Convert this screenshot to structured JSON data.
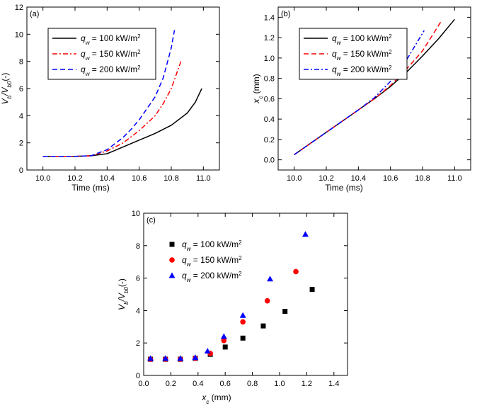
{
  "chart_data": [
    {
      "panel_label": "(a)",
      "type": "line",
      "xlabel": "Time (ms)",
      "ylabel": {
        "base": "V",
        "sub": "b",
        "mid": "/V",
        "sub2": "b0",
        "tail": "(-)"
      },
      "xlim": [
        9.9,
        11.1
      ],
      "ylim": [
        0,
        12
      ],
      "xticks": [
        "10.0",
        "10.2",
        "10.4",
        "10.6",
        "10.8",
        "11.0"
      ],
      "xtick_values": [
        10.0,
        10.2,
        10.4,
        10.6,
        10.8,
        11.0
      ],
      "yticks": [
        "0",
        "2",
        "4",
        "6",
        "8",
        "10",
        "12"
      ],
      "ytick_values": [
        0,
        2,
        4,
        6,
        8,
        10,
        12
      ],
      "legend_position": "top-left",
      "series": [
        {
          "label": {
            "sym": "q",
            "sub": "w",
            "text": " = 100 kW/m",
            "sup": "2"
          },
          "color": "#000000",
          "dash": "solid",
          "x": [
            10.0,
            10.1,
            10.2,
            10.3,
            10.4,
            10.45,
            10.5,
            10.6,
            10.7,
            10.8,
            10.9,
            10.95,
            10.99
          ],
          "y": [
            1.0,
            1.0,
            1.0,
            1.05,
            1.2,
            1.45,
            1.7,
            2.2,
            2.7,
            3.3,
            4.2,
            5.0,
            6.0
          ]
        },
        {
          "label": {
            "sym": "q",
            "sub": "w",
            "text": " = 150 kW/m",
            "sup": "2"
          },
          "color": "#ff0000",
          "dash": "dashdot",
          "x": [
            10.0,
            10.1,
            10.2,
            10.3,
            10.4,
            10.45,
            10.5,
            10.6,
            10.7,
            10.75,
            10.8,
            10.86
          ],
          "y": [
            1.0,
            1.0,
            1.0,
            1.05,
            1.4,
            1.7,
            2.0,
            2.9,
            4.0,
            4.9,
            6.0,
            8.0
          ]
        },
        {
          "label": {
            "sym": "q",
            "sub": "w",
            "text": " = 200 kW/m",
            "sup": "2"
          },
          "color": "#0000ff",
          "dash": "dashed",
          "x": [
            10.0,
            10.1,
            10.2,
            10.3,
            10.4,
            10.45,
            10.5,
            10.55,
            10.6,
            10.7,
            10.75,
            10.8,
            10.82
          ],
          "y": [
            1.0,
            1.0,
            1.0,
            1.05,
            1.5,
            1.95,
            2.4,
            3.0,
            3.7,
            5.4,
            6.8,
            9.0,
            10.3
          ]
        }
      ]
    },
    {
      "panel_label": "(b)",
      "type": "line",
      "xlabel": "Time (ms)",
      "ylabel": {
        "base": "x",
        "sub": "c",
        "tail": " (mm)"
      },
      "xlim": [
        9.9,
        11.1
      ],
      "ylim": [
        -0.1,
        1.5
      ],
      "xticks": [
        "10.0",
        "10.2",
        "10.4",
        "10.6",
        "10.8",
        "11.0"
      ],
      "xtick_values": [
        10.0,
        10.2,
        10.4,
        10.6,
        10.8,
        11.0
      ],
      "yticks": [
        "0.0",
        "0.2",
        "0.4",
        "0.6",
        "0.8",
        "1.0",
        "1.2",
        "1.4"
      ],
      "ytick_values": [
        0.0,
        0.2,
        0.4,
        0.6,
        0.8,
        1.0,
        1.2,
        1.4
      ],
      "legend_position": "top-left",
      "series": [
        {
          "label": {
            "sym": "q",
            "sub": "w",
            "text": " = 100 kW/m",
            "sup": "2"
          },
          "color": "#000000",
          "dash": "solid",
          "x": [
            10.0,
            10.1,
            10.2,
            10.3,
            10.4,
            10.5,
            10.6,
            10.7,
            10.8,
            10.9,
            11.0
          ],
          "y": [
            0.05,
            0.16,
            0.27,
            0.38,
            0.49,
            0.6,
            0.72,
            0.86,
            1.02,
            1.19,
            1.38
          ]
        },
        {
          "label": {
            "sym": "q",
            "sub": "w",
            "text": " = 150 kW/m",
            "sup": "2"
          },
          "color": "#ff0000",
          "dash": "dashed",
          "x": [
            10.0,
            10.1,
            10.2,
            10.3,
            10.4,
            10.5,
            10.6,
            10.7,
            10.8,
            10.92
          ],
          "y": [
            0.05,
            0.16,
            0.27,
            0.38,
            0.49,
            0.6,
            0.73,
            0.89,
            1.07,
            1.37
          ]
        },
        {
          "label": {
            "sym": "q",
            "sub": "w",
            "text": " = 200 kW/m",
            "sup": "2"
          },
          "color": "#0000ff",
          "dash": "dashdot",
          "x": [
            10.0,
            10.1,
            10.2,
            10.3,
            10.4,
            10.5,
            10.6,
            10.7,
            10.81
          ],
          "y": [
            0.05,
            0.16,
            0.27,
            0.38,
            0.49,
            0.61,
            0.77,
            0.98,
            1.27
          ]
        }
      ]
    },
    {
      "panel_label": "(c)",
      "type": "scatter",
      "xlabel": {
        "base": "x",
        "sub": "c",
        "tail": " (mm)"
      },
      "ylabel": {
        "base": "V",
        "sub": "b",
        "mid": "/V",
        "sub2": "b0",
        "tail": "(-)"
      },
      "xlim": [
        0.0,
        1.5
      ],
      "ylim": [
        0,
        10
      ],
      "xticks": [
        "0.0",
        "0.2",
        "0.4",
        "0.6",
        "0.8",
        "1.0",
        "1.2",
        "1.4"
      ],
      "xtick_values": [
        0.0,
        0.2,
        0.4,
        0.6,
        0.8,
        1.0,
        1.2,
        1.4
      ],
      "yticks": [
        "0",
        "2",
        "4",
        "6",
        "8",
        "10"
      ],
      "ytick_values": [
        0,
        2,
        4,
        6,
        8,
        10
      ],
      "legend_position": "top-left",
      "series": [
        {
          "label": {
            "sym": "q",
            "sub": "w",
            "text": " = 100 kW/m",
            "sup": "2"
          },
          "color": "#000000",
          "marker": "square",
          "x": [
            0.05,
            0.16,
            0.27,
            0.38,
            0.49,
            0.6,
            0.73,
            0.88,
            1.04,
            1.24
          ],
          "y": [
            1.0,
            1.0,
            1.0,
            1.05,
            1.3,
            1.75,
            2.3,
            3.05,
            3.95,
            5.3
          ]
        },
        {
          "label": {
            "sym": "q",
            "sub": "w",
            "text": " = 150 kW/m",
            "sup": "2"
          },
          "color": "#ff0000",
          "marker": "circle",
          "x": [
            0.05,
            0.16,
            0.27,
            0.38,
            0.49,
            0.59,
            0.73,
            0.91,
            1.12
          ],
          "y": [
            1.0,
            1.0,
            1.0,
            1.05,
            1.35,
            2.15,
            3.3,
            4.6,
            6.4
          ]
        },
        {
          "label": {
            "sym": "q",
            "sub": "w",
            "text": " = 200 kW/m",
            "sup": "2"
          },
          "color": "#0000ff",
          "marker": "triangle",
          "x": [
            0.05,
            0.16,
            0.27,
            0.38,
            0.47,
            0.59,
            0.73,
            0.93,
            1.19
          ],
          "y": [
            1.05,
            1.05,
            1.05,
            1.1,
            1.5,
            2.4,
            3.7,
            5.95,
            8.7
          ]
        }
      ]
    }
  ]
}
